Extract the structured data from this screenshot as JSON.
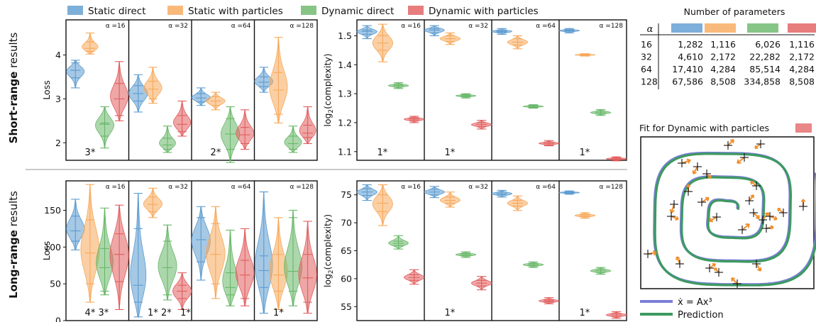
{
  "legend": [
    {
      "label": "Static direct",
      "color": "#5b9bd0"
    },
    {
      "label": "Static with particles",
      "color": "#f8a85a"
    },
    {
      "label": "Dynamic direct",
      "color": "#68b768"
    },
    {
      "label": "Dynamic with particles",
      "color": "#e25d5d"
    }
  ],
  "row_labels": [
    {
      "bold": "Short-range",
      "rest": " results"
    },
    {
      "bold": "Long-range",
      "rest": " results"
    }
  ],
  "alpha_labels": [
    "α =16",
    "α =32",
    "α =64",
    "α =128"
  ],
  "chart_data": [
    {
      "type": "violin",
      "id": "short-loss",
      "ylabel": "Loss",
      "ylim": [
        1.6,
        4.8
      ],
      "yticks": [
        2,
        3,
        4
      ],
      "groups": [
        "α =16",
        "α =32",
        "α =64",
        "α =128"
      ],
      "series": [
        {
          "color": "#5b9bd0",
          "values": [
            [
              3.25,
              3.88,
              3.65,
              3.48,
              3.82
            ],
            [
              2.7,
              3.55,
              3.12,
              2.95,
              3.3
            ],
            [
              2.85,
              3.25,
              3.02,
              2.93,
              3.12
            ],
            [
              3.15,
              3.72,
              3.38,
              3.28,
              3.5
            ]
          ]
        },
        {
          "color": "#f8a85a",
          "values": [
            [
              4.02,
              4.5,
              4.15,
              4.08,
              4.3
            ],
            [
              2.9,
              3.72,
              3.22,
              3.0,
              3.4
            ],
            [
              2.75,
              3.15,
              2.95,
              2.85,
              3.05
            ],
            [
              2.45,
              4.4,
              3.2,
              2.65,
              3.6
            ]
          ]
        },
        {
          "color": "#68b768",
          "values": [
            [
              1.88,
              2.82,
              2.42,
              2.15,
              2.45
            ],
            [
              1.78,
              2.38,
              1.95,
              1.85,
              2.1
            ],
            [
              1.55,
              2.82,
              2.2,
              1.85,
              2.55
            ],
            [
              1.78,
              2.38,
              1.98,
              1.85,
              2.15
            ]
          ]
        },
        {
          "color": "#e25d5d",
          "values": [
            [
              2.5,
              3.85,
              3.0,
              2.62,
              3.35
            ],
            [
              2.15,
              2.95,
              2.42,
              2.25,
              2.62
            ],
            [
              1.85,
              2.75,
              2.18,
              1.98,
              2.35
            ],
            [
              1.98,
              2.82,
              2.22,
              2.12,
              2.4
            ]
          ]
        }
      ],
      "annotations": [
        "3*",
        "",
        "2*",
        ""
      ]
    },
    {
      "type": "violin",
      "id": "short-complexity",
      "ylabel": "log2(complexity)",
      "ylim": [
        1.07,
        1.555
      ],
      "yticks": [
        1.1,
        1.2,
        1.3,
        1.4,
        1.5
      ],
      "groups": [
        "α =16",
        "α =32",
        "α =64",
        "α =128"
      ],
      "series": [
        {
          "color": "#5b9bd0",
          "values": [
            [
              1.49,
              1.535,
              1.515,
              1.505,
              1.52
            ],
            [
              1.5,
              1.535,
              1.52,
              1.51,
              1.525
            ],
            [
              1.505,
              1.525,
              1.515,
              1.512,
              1.518
            ],
            [
              1.51,
              1.525,
              1.518,
              1.516,
              1.52
            ]
          ]
        },
        {
          "color": "#f8a85a",
          "values": [
            [
              1.41,
              1.54,
              1.475,
              1.45,
              1.5
            ],
            [
              1.47,
              1.51,
              1.49,
              1.48,
              1.5
            ],
            [
              1.455,
              1.5,
              1.478,
              1.468,
              1.49
            ],
            [
              1.43,
              1.438,
              1.434,
              1.432,
              1.436
            ]
          ]
        },
        {
          "color": "#68b768",
          "values": [
            [
              1.318,
              1.338,
              1.328,
              1.323,
              1.332
            ],
            [
              1.285,
              1.3,
              1.293,
              1.29,
              1.296
            ],
            [
              1.25,
              1.262,
              1.256,
              1.253,
              1.259
            ],
            [
              1.225,
              1.245,
              1.235,
              1.23,
              1.24
            ]
          ]
        },
        {
          "color": "#e25d5d",
          "values": [
            [
              1.2,
              1.222,
              1.212,
              1.207,
              1.216
            ],
            [
              1.178,
              1.208,
              1.193,
              1.186,
              1.2
            ],
            [
              1.12,
              1.138,
              1.128,
              1.123,
              1.133
            ],
            [
              1.068,
              1.082,
              1.075,
              1.072,
              1.078
            ]
          ]
        }
      ],
      "annotations": [
        "1*",
        "1*",
        "",
        "1*"
      ]
    },
    {
      "type": "violin",
      "id": "long-loss",
      "ylabel": "Loss",
      "ylim": [
        0,
        190
      ],
      "yticks": [
        0,
        50,
        100,
        150
      ],
      "groups": [
        "α =16",
        "α =32",
        "α =64",
        "α =128"
      ],
      "series": [
        {
          "color": "#5b9bd0",
          "values": [
            [
              96,
              165,
              122,
              108,
              142
            ],
            [
              5,
              173,
              48,
              25,
              125
            ],
            [
              55,
              155,
              110,
              80,
              140
            ],
            [
              10,
              175,
              68,
              45,
              88
            ]
          ]
        },
        {
          "color": "#f8a85a",
          "values": [
            [
              25,
              185,
              92,
              50,
              137
            ],
            [
              140,
              180,
              158,
              148,
              168
            ],
            [
              30,
              155,
              90,
              50,
              132
            ],
            [
              15,
              140,
              62,
              40,
              90
            ]
          ]
        },
        {
          "color": "#68b768",
          "values": [
            [
              35,
              153,
              72,
              40,
              98
            ],
            [
              28,
              130,
              72,
              35,
              108
            ],
            [
              20,
              123,
              45,
              35,
              65
            ],
            [
              20,
              150,
              67,
              40,
              140
            ]
          ]
        },
        {
          "color": "#e25d5d",
          "values": [
            [
              15,
              157,
              90,
              53,
              118
            ],
            [
              15,
              65,
              40,
              30,
              48
            ],
            [
              20,
              125,
              62,
              30,
              82
            ],
            [
              10,
              135,
              58,
              25,
              90
            ]
          ]
        }
      ],
      "annotations": [
        "4* 3*",
        "1* 2*   1*",
        "",
        "1*"
      ]
    },
    {
      "type": "violin",
      "id": "long-complexity",
      "ylabel": "log2(complexity)",
      "ylim": [
        52.5,
        77.5
      ],
      "yticks": [
        55,
        60,
        65,
        70,
        75
      ],
      "groups": [
        "α =16",
        "α =32",
        "α =64",
        "α =128"
      ],
      "series": [
        {
          "color": "#5b9bd0",
          "values": [
            [
              74.0,
              76.8,
              75.5,
              74.9,
              76.1
            ],
            [
              74.5,
              76.5,
              75.5,
              75.0,
              76.0
            ],
            [
              74.6,
              75.8,
              75.2,
              75.0,
              75.5
            ],
            [
              75.1,
              75.7,
              75.4,
              75.3,
              75.5
            ]
          ]
        },
        {
          "color": "#f8a85a",
          "values": [
            [
              69.5,
              76.8,
              73.5,
              72.0,
              75.0
            ],
            [
              72.8,
              75.5,
              74.0,
              73.5,
              74.6
            ],
            [
              72.2,
              74.8,
              73.5,
              73.0,
              74.0
            ],
            [
              70.8,
              71.8,
              71.3,
              71.1,
              71.5
            ]
          ]
        },
        {
          "color": "#68b768",
          "values": [
            [
              65.3,
              67.7,
              66.3,
              65.9,
              66.7
            ],
            [
              63.8,
              64.8,
              64.3,
              64.1,
              64.5
            ],
            [
              62.0,
              63.0,
              62.5,
              62.3,
              62.7
            ],
            [
              60.8,
              62.0,
              61.4,
              61.1,
              61.7
            ]
          ]
        },
        {
          "color": "#e25d5d",
          "values": [
            [
              59.0,
              61.6,
              60.2,
              59.7,
              60.7
            ],
            [
              58.0,
              60.4,
              59.2,
              58.7,
              59.7
            ],
            [
              55.5,
              56.6,
              56.0,
              55.8,
              56.2
            ],
            [
              52.9,
              54.1,
              53.5,
              53.2,
              53.8
            ]
          ]
        }
      ],
      "annotations": [
        "",
        "1*",
        "",
        "1*"
      ]
    }
  ],
  "table": {
    "title": "Number of parameters",
    "alpha_header": "α",
    "colors": [
      "#5b9bd0",
      "#f8a85a",
      "#68b768",
      "#e25d5d"
    ],
    "rows": [
      [
        "16",
        "1,282",
        "1,116",
        "6,026",
        "1,116"
      ],
      [
        "32",
        "4,610",
        "2,172",
        "22,282",
        "2,172"
      ],
      [
        "64",
        "17,410",
        "4,284",
        "85,514",
        "4,284"
      ],
      [
        "128",
        "67,586",
        "8,508",
        "334,858",
        "8,508"
      ]
    ]
  },
  "fit": {
    "title": "Fit for Dynamic with particles",
    "title_color": "#e25d5d",
    "true_color": "#7b7fd6",
    "pred_color": "#3c9a5f",
    "legend_true": "ẋ = Ax³",
    "legend_pred": "Prediction"
  }
}
